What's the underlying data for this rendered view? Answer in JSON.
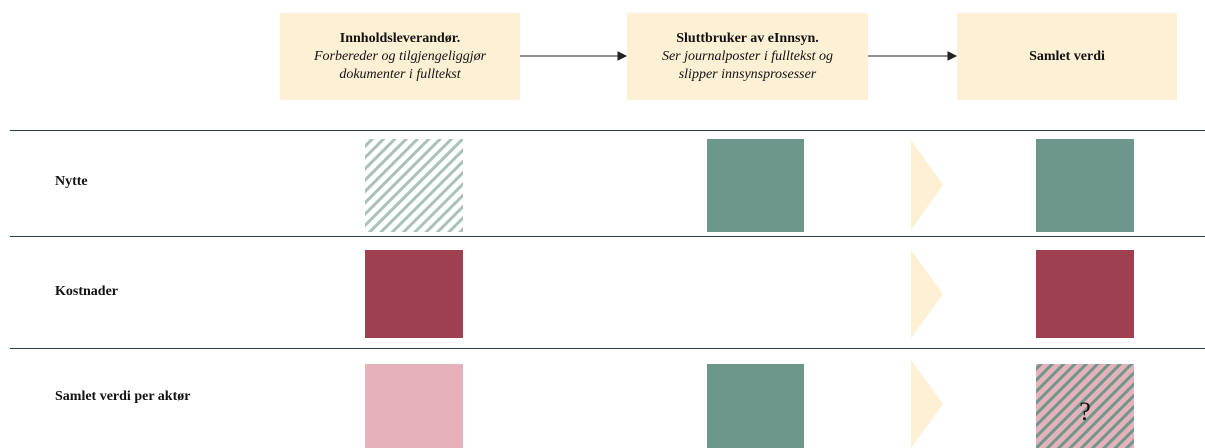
{
  "header": {
    "columns": [
      {
        "title": "Innholdsleverandør.",
        "subtitle_lines": [
          "Forbereder og tilgjengeliggjør",
          "dokumenter i fulltekst"
        ]
      },
      {
        "title": "Sluttbruker av eInnsyn.",
        "subtitle_lines": [
          "Ser journalposter i fulltekst og",
          "slipper innsynsprosesser"
        ]
      },
      {
        "title": "Samlet verdi"
      }
    ]
  },
  "rows": [
    {
      "label": "Nytte"
    },
    {
      "label": "Kostnader"
    },
    {
      "label": "Samlet verdi per aktør",
      "result_mark": "?"
    }
  ]
}
